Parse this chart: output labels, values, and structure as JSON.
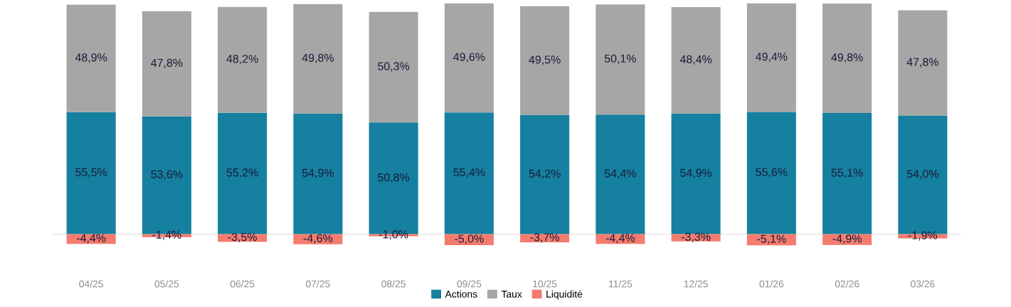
{
  "chart_data": {
    "type": "bar",
    "stacked": true,
    "categories": [
      "04/25",
      "05/25",
      "06/25",
      "07/25",
      "08/25",
      "09/25",
      "10/25",
      "11/25",
      "12/25",
      "01/26",
      "02/26",
      "03/26"
    ],
    "tick_labels": "x",
    "grid": false,
    "legend": "bottom",
    "ref_lines": [
      {
        "axis": "y",
        "value": 0,
        "color": "#e6e6e6"
      }
    ],
    "series": [
      {
        "name": "Actions",
        "color": "#15809f",
        "values": [
          55.5,
          53.6,
          55.2,
          54.9,
          50.8,
          55.4,
          54.2,
          54.4,
          54.9,
          55.6,
          55.1,
          54.0
        ],
        "value_labels": [
          "55,5%",
          "53,6%",
          "55,2%",
          "54,9%",
          "50,8%",
          "55,4%",
          "54,2%",
          "54,4%",
          "54,9%",
          "55,6%",
          "55,1%",
          "54,0%"
        ]
      },
      {
        "name": "Taux",
        "color": "#a6a6a6",
        "values": [
          48.9,
          47.8,
          48.2,
          49.8,
          50.3,
          49.6,
          49.5,
          50.1,
          48.4,
          49.4,
          49.8,
          47.8
        ],
        "value_labels": [
          "48,9%",
          "47,8%",
          "48,2%",
          "49,8%",
          "50,3%",
          "49,6%",
          "49,5%",
          "50,1%",
          "48,4%",
          "49,4%",
          "49,8%",
          "47,8%"
        ]
      },
      {
        "name": "Liquidité",
        "color": "#f47c6f",
        "values": [
          -4.4,
          -1.4,
          -3.5,
          -4.6,
          -1.0,
          -5.0,
          -3.7,
          -4.4,
          -3.3,
          -5.1,
          -4.9,
          -1.9
        ],
        "value_labels": [
          "-4,4%",
          "-1,4%",
          "-3,5%",
          "-4,6%",
          "-1,0%",
          "-5,0%",
          "-3,7%",
          "-4,4%",
          "-3,3%",
          "-5,1%",
          "-4,9%",
          "-1,9%"
        ]
      }
    ]
  }
}
